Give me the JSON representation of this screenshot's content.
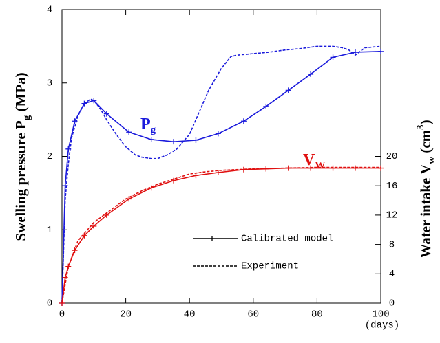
{
  "chart_data": {
    "type": "line",
    "xlabel": "(days)",
    "ylabel": [
      "Swelling pressure P",
      "g",
      " (MPa)"
    ],
    "y2label": [
      "Water intake V",
      "w",
      " (cm",
      "3",
      ")"
    ],
    "xlim": [
      0,
      100
    ],
    "xticks": [
      0,
      20,
      40,
      60,
      80,
      100
    ],
    "ylim": [
      0,
      4
    ],
    "yticks": [
      0,
      1,
      2,
      3,
      4
    ],
    "y2lim": [
      0,
      40
    ],
    "y2ticks": [
      0,
      4,
      8,
      12,
      16,
      20
    ],
    "annotations": [
      {
        "text": "P",
        "sub": "g",
        "color": "#1a1adc"
      },
      {
        "text": "V",
        "sub": "W",
        "color": "#e01010"
      }
    ],
    "legend": [
      {
        "label": "Calibrated model",
        "style": "solid"
      },
      {
        "label": "Experiment",
        "style": "dashed"
      }
    ],
    "series": [
      {
        "color": "#1a1adc",
        "style": "solid",
        "marker": "+",
        "axis": "y",
        "x": [
          0,
          1,
          2,
          4,
          7,
          10,
          14,
          21,
          28,
          35,
          42,
          49,
          57,
          64,
          71,
          78,
          85,
          92,
          100
        ],
        "values": [
          0,
          1.6,
          2.1,
          2.48,
          2.72,
          2.76,
          2.58,
          2.33,
          2.23,
          2.2,
          2.22,
          2.31,
          2.48,
          2.68,
          2.9,
          3.12,
          3.35,
          3.42,
          3.43
        ]
      },
      {
        "color": "#1a1adc",
        "style": "dashed",
        "axis": "y",
        "x": [
          0,
          1,
          2,
          3,
          5,
          7,
          9,
          10,
          12,
          14,
          17,
          20,
          23,
          25,
          28,
          30,
          33,
          36,
          40,
          43,
          46,
          50,
          53,
          55,
          60,
          65,
          70,
          75,
          80,
          85,
          88,
          90,
          92,
          95,
          100
        ],
        "values": [
          0,
          1.4,
          1.9,
          2.25,
          2.55,
          2.72,
          2.78,
          2.76,
          2.65,
          2.5,
          2.3,
          2.13,
          2.02,
          1.99,
          1.97,
          1.97,
          2.02,
          2.1,
          2.3,
          2.6,
          2.9,
          3.2,
          3.36,
          3.38,
          3.4,
          3.42,
          3.45,
          3.47,
          3.5,
          3.5,
          3.48,
          3.45,
          3.38,
          3.48,
          3.5
        ]
      },
      {
        "color": "#e01010",
        "style": "solid",
        "marker": "+",
        "axis": "y2",
        "x": [
          0,
          1,
          2,
          4,
          7,
          10,
          14,
          21,
          28,
          35,
          42,
          49,
          57,
          64,
          71,
          78,
          85,
          92,
          100
        ],
        "values": [
          0,
          3.5,
          5,
          7.2,
          9.2,
          10.5,
          12,
          14.2,
          15.7,
          16.7,
          17.4,
          17.8,
          18.2,
          18.3,
          18.4,
          18.4,
          18.4,
          18.4,
          18.4
        ]
      },
      {
        "color": "#e01010",
        "style": "dashed",
        "axis": "y2",
        "x": [
          0,
          2,
          5,
          10,
          15,
          20,
          25,
          30,
          35,
          40,
          45,
          50,
          60,
          70,
          80,
          90,
          100
        ],
        "values": [
          0,
          5,
          8.5,
          11,
          12.6,
          14.2,
          15.3,
          16.2,
          16.9,
          17.6,
          17.9,
          18.1,
          18.3,
          18.4,
          18.5,
          18.5,
          18.5
        ]
      }
    ]
  }
}
